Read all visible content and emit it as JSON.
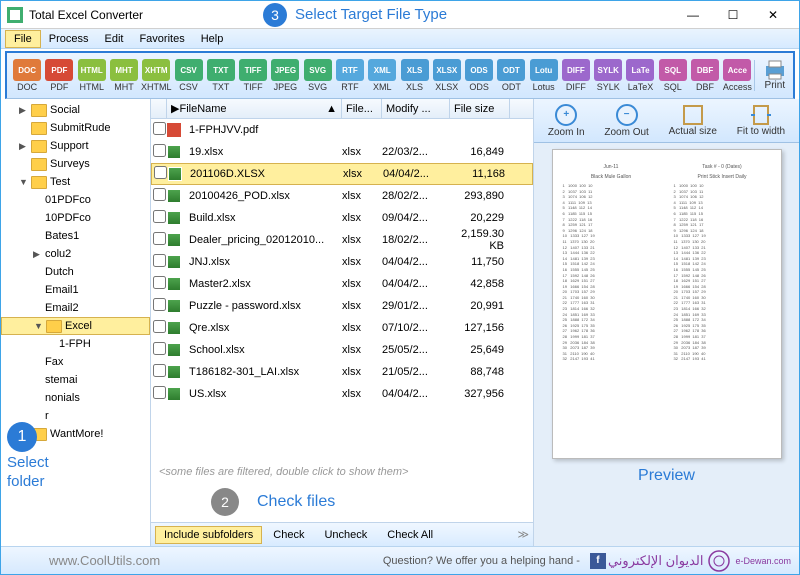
{
  "window": {
    "title": "Total Excel Converter",
    "min": "—",
    "max": "☐",
    "close": "✕"
  },
  "step3": {
    "num": "3",
    "label": "Select Target File Type"
  },
  "menu": {
    "file": "File",
    "process": "Process",
    "edit": "Edit",
    "favorites": "Favorites",
    "help": "Help"
  },
  "formats": [
    {
      "label": "DOC",
      "color": "#e07a3a"
    },
    {
      "label": "PDF",
      "color": "#d64a36"
    },
    {
      "label": "HTML",
      "color": "#8bbf3f"
    },
    {
      "label": "MHT",
      "color": "#8bbf3f"
    },
    {
      "label": "XHTML",
      "color": "#8bbf3f"
    },
    {
      "label": "CSV",
      "color": "#3fae6f"
    },
    {
      "label": "TXT",
      "color": "#3fae6f"
    },
    {
      "label": "TIFF",
      "color": "#3fae6f"
    },
    {
      "label": "JPEG",
      "color": "#3fae6f"
    },
    {
      "label": "SVG",
      "color": "#3fae6f"
    },
    {
      "label": "RTF",
      "color": "#55a8dd"
    },
    {
      "label": "XML",
      "color": "#55a8dd"
    },
    {
      "label": "XLS",
      "color": "#4a9cd4"
    },
    {
      "label": "XLSX",
      "color": "#4a9cd4"
    },
    {
      "label": "ODS",
      "color": "#4a9cd4"
    },
    {
      "label": "ODT",
      "color": "#4a9cd4"
    },
    {
      "label": "Lotus",
      "color": "#4a9cd4"
    },
    {
      "label": "DIFF",
      "color": "#9c68cc"
    },
    {
      "label": "SYLK",
      "color": "#9c68cc"
    },
    {
      "label": "LaTeX",
      "color": "#9c68cc"
    },
    {
      "label": "SQL",
      "color": "#c25aa8"
    },
    {
      "label": "DBF",
      "color": "#c25aa8"
    },
    {
      "label": "Access",
      "color": "#c25aa8"
    }
  ],
  "print": "Print",
  "tree": [
    {
      "arrow": "▶",
      "label": "Social",
      "indent": 1
    },
    {
      "arrow": "",
      "label": "SubmitRude",
      "indent": 1
    },
    {
      "arrow": "▶",
      "label": "Support",
      "indent": 1
    },
    {
      "arrow": "",
      "label": "Surveys",
      "indent": 1
    },
    {
      "arrow": "▼",
      "label": "Test",
      "indent": 1
    },
    {
      "arrow": "",
      "label": "01PDFco",
      "indent": 2,
      "nofld": true
    },
    {
      "arrow": "",
      "label": "10PDFco",
      "indent": 2,
      "nofld": true
    },
    {
      "arrow": "",
      "label": "Bates1",
      "indent": 2,
      "nofld": true
    },
    {
      "arrow": "▶",
      "label": "colu2",
      "indent": 2,
      "nofld": true
    },
    {
      "arrow": "",
      "label": "Dutch",
      "indent": 2,
      "nofld": true
    },
    {
      "arrow": "",
      "label": "Email1",
      "indent": 2,
      "nofld": true
    },
    {
      "arrow": "",
      "label": "Email2",
      "indent": 2,
      "nofld": true
    },
    {
      "arrow": "▼",
      "label": "Excel",
      "indent": 2,
      "sel": true
    },
    {
      "arrow": "",
      "label": "1-FPH",
      "indent": 3,
      "nofld": true
    },
    {
      "arrow": "",
      "label": "Fax",
      "indent": 2,
      "nofld": true
    },
    {
      "arrow": "",
      "label": "stemai",
      "indent": 2,
      "nofld": true
    },
    {
      "arrow": "",
      "label": "nonials",
      "indent": 2,
      "nofld": true
    },
    {
      "arrow": "",
      "label": "r",
      "indent": 2,
      "nofld": true
    },
    {
      "arrow": "▶",
      "label": "WantMore!",
      "indent": 1
    }
  ],
  "step1": {
    "num": "1",
    "label1": "Select",
    "label2": "folder"
  },
  "columns": {
    "chk": "",
    "name": "FileName",
    "type": "File...",
    "mod": "Modify ...",
    "size": "File size"
  },
  "files": [
    {
      "pdf": true,
      "name": "1-FPHJVV.pdf",
      "type": "",
      "mod": "",
      "size": ""
    },
    {
      "name": "19.xlsx",
      "type": "xlsx",
      "mod": "22/03/2...",
      "size": "16,849"
    },
    {
      "name": "201106D.XLSX",
      "type": "xlsx",
      "mod": "04/04/2...",
      "size": "11,168",
      "sel": true
    },
    {
      "name": "20100426_POD.xlsx",
      "type": "xlsx",
      "mod": "28/02/2...",
      "size": "293,890"
    },
    {
      "name": "Build.xlsx",
      "type": "xlsx",
      "mod": "09/04/2...",
      "size": "20,229"
    },
    {
      "name": "Dealer_pricing_02012010...",
      "type": "xlsx",
      "mod": "18/02/2...",
      "size": "2,159.30 KB"
    },
    {
      "name": "JNJ.xlsx",
      "type": "xlsx",
      "mod": "04/04/2...",
      "size": "11,750"
    },
    {
      "name": "Master2.xlsx",
      "type": "xlsx",
      "mod": "04/04/2...",
      "size": "42,858"
    },
    {
      "name": "Puzzle - password.xlsx",
      "type": "xlsx",
      "mod": "29/01/2...",
      "size": "20,991"
    },
    {
      "name": "Qre.xlsx",
      "type": "xlsx",
      "mod": "07/10/2...",
      "size": "127,156"
    },
    {
      "name": "School.xlsx",
      "type": "xlsx",
      "mod": "25/05/2...",
      "size": "25,649"
    },
    {
      "name": "T186182-301_LAI.xlsx",
      "type": "xlsx",
      "mod": "21/05/2...",
      "size": "88,748"
    },
    {
      "name": "US.xlsx",
      "type": "xlsx",
      "mod": "04/04/2...",
      "size": "327,956"
    }
  ],
  "filtered": "<some files are filtered, double click to show them>",
  "step2": {
    "num": "2",
    "label": "Check files"
  },
  "bottom": {
    "include": "Include subfolders",
    "check": "Check",
    "uncheck": "Uncheck",
    "checkall": "Check All"
  },
  "preview": {
    "zoomin": "Zoom In",
    "zoomout": "Zoom Out",
    "actual": "Actual size",
    "fit": "Fit to width",
    "label": "Preview",
    "doc_title1": "Jun-11",
    "doc_title2": "Task # - 0 (Dates)",
    "doc_sub1": "Black Mule Gallon",
    "doc_sub2": "Print Stick Insert Daily"
  },
  "status": {
    "url": "www.CoolUtils.com",
    "q": "Question? We offer you a helping hand -",
    "brand": "الديوان الإلكتروني",
    "brand2": "e-Dewan.com"
  }
}
